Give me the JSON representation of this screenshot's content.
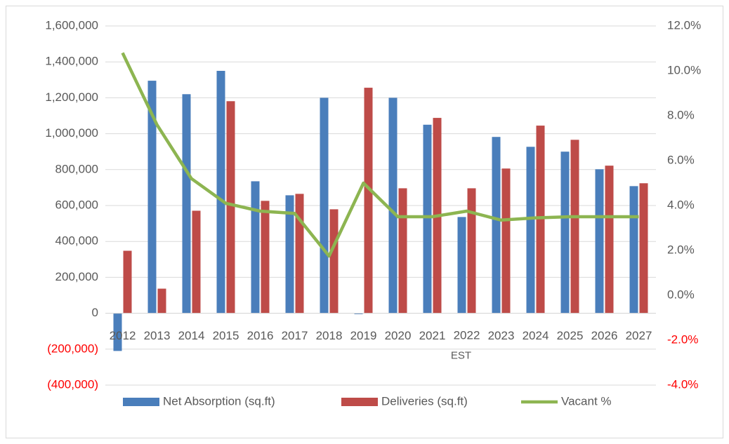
{
  "chart_data": {
    "type": "bar_line",
    "categories": [
      "2012",
      "2013",
      "2014",
      "2015",
      "2016",
      "2017",
      "2018",
      "2019",
      "2020",
      "2021",
      "2022\nEST",
      "2023",
      "2024",
      "2025",
      "2026",
      "2027"
    ],
    "series": [
      {
        "name": "Net Absorption (sq.ft)",
        "color": "#4a7ebb",
        "type": "bar",
        "values": [
          -210000,
          1295000,
          1220000,
          1350000,
          735000,
          657000,
          1200000,
          -5000,
          1200000,
          1050000,
          536000,
          982000,
          927000,
          900000,
          802000,
          708000
        ]
      },
      {
        "name": "Deliveries (sq.ft)",
        "color": "#be4b48",
        "type": "bar",
        "values": [
          348000,
          137000,
          571000,
          1181000,
          626000,
          665000,
          579000,
          1256000,
          696000,
          1088000,
          696000,
          806000,
          1045000,
          966000,
          822000,
          724000
        ]
      },
      {
        "name": "Vacant %",
        "color": "#8db551",
        "type": "line",
        "axis": "y2",
        "values": [
          10.8,
          7.6,
          5.2,
          4.1,
          3.75,
          3.65,
          1.75,
          5.0,
          3.5,
          3.5,
          3.75,
          3.35,
          3.45,
          3.5,
          3.5,
          3.5
        ]
      }
    ],
    "ylim": [
      -400000,
      1600000
    ],
    "yticks": [
      {
        "value": -400000,
        "label": "(400,000)"
      },
      {
        "value": -200000,
        "label": "(200,000)"
      },
      0,
      {
        "value": 200000,
        "label": "200,000"
      },
      {
        "value": 400000,
        "label": "400,000"
      },
      {
        "value": 600000,
        "label": "600,000"
      },
      {
        "value": 800000,
        "label": "800,000"
      },
      {
        "value": 1000000,
        "label": "1,000,000"
      },
      {
        "value": 1200000,
        "label": "1,200,000"
      },
      {
        "value": 1400000,
        "label": "1,400,000"
      },
      {
        "value": 1600000,
        "label": "1,600,000"
      }
    ],
    "y2lim": [
      -4,
      12
    ],
    "y2ticks": [
      {
        "value": -4,
        "label": "-4.0%"
      },
      {
        "value": -2,
        "label": "-2.0%"
      },
      {
        "value": 0,
        "label": "0.0%"
      },
      {
        "value": 2,
        "label": "2.0%"
      },
      {
        "value": 4,
        "label": "4.0%"
      },
      {
        "value": 6,
        "label": "6.0%"
      },
      {
        "value": 8,
        "label": "8.0%"
      },
      {
        "value": 10,
        "label": "10.0%"
      },
      {
        "value": 12,
        "label": "12.0%"
      }
    ],
    "grid": true,
    "legend": "bottom",
    "negative_label_color": "#ff0000"
  }
}
